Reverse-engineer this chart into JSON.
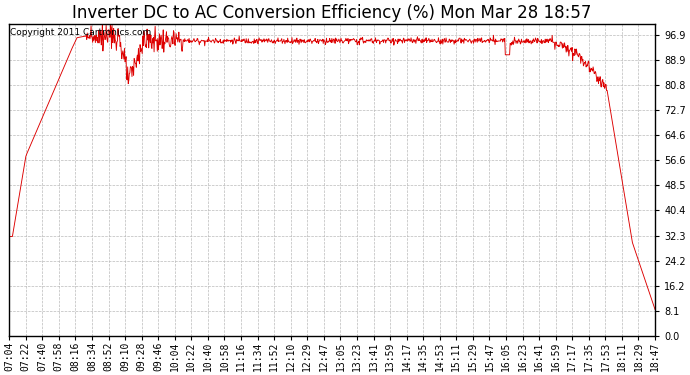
{
  "title": "Inverter DC to AC Conversion Efficiency (%) Mon Mar 28 18:57",
  "copyright": "Copyright 2011 Cartronics.com",
  "line_color": "#dd0000",
  "bg_color": "#ffffff",
  "plot_bg_color": "#ffffff",
  "grid_color": "#bbbbbb",
  "yticks": [
    0.0,
    8.1,
    16.2,
    24.2,
    32.3,
    40.4,
    48.5,
    56.6,
    64.6,
    72.7,
    80.8,
    88.9,
    96.9
  ],
  "ylim": [
    0.0,
    100.5
  ],
  "xtick_labels": [
    "07:04",
    "07:22",
    "07:40",
    "07:58",
    "08:16",
    "08:34",
    "08:52",
    "09:10",
    "09:28",
    "09:46",
    "10:04",
    "10:22",
    "10:40",
    "10:58",
    "11:16",
    "11:34",
    "11:52",
    "12:10",
    "12:29",
    "12:47",
    "13:05",
    "13:23",
    "13:41",
    "13:59",
    "14:17",
    "14:35",
    "14:53",
    "15:11",
    "15:29",
    "15:47",
    "16:05",
    "16:23",
    "16:41",
    "16:59",
    "17:17",
    "17:35",
    "17:53",
    "18:11",
    "18:29",
    "18:47"
  ],
  "title_fontsize": 12,
  "copyright_fontsize": 6.5,
  "tick_fontsize": 7
}
